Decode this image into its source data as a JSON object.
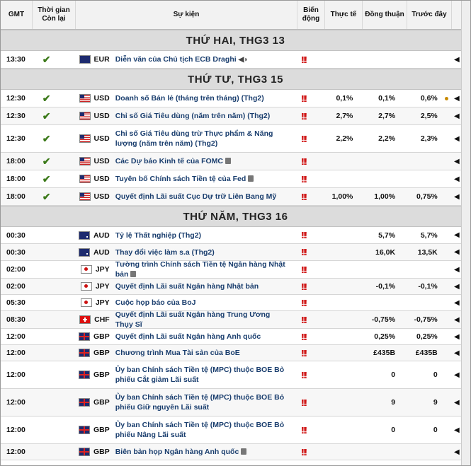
{
  "headers": {
    "gmt": "GMT",
    "remaining": "Thời gian Còn lại",
    "event": "Sự kiện",
    "impact": "Biến động",
    "actual": "Thực tế",
    "consensus": "Đồng thuận",
    "previous": "Trước đây"
  },
  "days": [
    {
      "title": "THỨ HAI, THG3 13",
      "rows": [
        {
          "time": "13:30",
          "done": true,
          "flag": "eur",
          "currency": "EUR",
          "event": "Diễn văn của Chủ tịch ECB Draghi",
          "icon": "speaker-icon",
          "impact": "!!!",
          "actual": "",
          "consensus": "",
          "previous": "",
          "dot": false
        }
      ]
    },
    {
      "title": "THỨ TƯ, THG3 15",
      "rows": [
        {
          "time": "12:30",
          "done": true,
          "flag": "usd",
          "currency": "USD",
          "event": "Doanh số Bán lẻ (tháng trên tháng) (Thg2)",
          "icon": "",
          "impact": "!!!",
          "actual": "0,1%",
          "consensus": "0,1%",
          "previous": "0,6%",
          "dot": true
        },
        {
          "time": "12:30",
          "done": true,
          "flag": "usd",
          "currency": "USD",
          "event": "Chỉ số Giá Tiêu dùng (năm trên năm) (Thg2)",
          "icon": "",
          "impact": "!!!",
          "actual": "2,7%",
          "consensus": "2,7%",
          "previous": "2,5%",
          "dot": false
        },
        {
          "time": "12:30",
          "done": true,
          "flag": "usd",
          "currency": "USD",
          "event": "Chỉ số Giá Tiêu dùng trừ Thực phẩm & Năng lượng (năm trên năm) (Thg2)",
          "icon": "",
          "impact": "!!!",
          "actual": "2,2%",
          "consensus": "2,2%",
          "previous": "2,3%",
          "dot": false
        },
        {
          "time": "18:00",
          "done": true,
          "flag": "usd",
          "currency": "USD",
          "event": "Các Dự báo Kinh tế của FOMC",
          "icon": "document-icon",
          "impact": "!!!",
          "actual": "",
          "consensus": "",
          "previous": "",
          "dot": false
        },
        {
          "time": "18:00",
          "done": true,
          "flag": "usd",
          "currency": "USD",
          "event": "Tuyên bố Chính sách Tiền tệ của Fed",
          "icon": "document-icon",
          "impact": "!!!",
          "actual": "",
          "consensus": "",
          "previous": "",
          "dot": false
        },
        {
          "time": "18:00",
          "done": true,
          "flag": "usd",
          "currency": "USD",
          "event": "Quyết định Lãi suất Cục Dự trữ Liên Bang Mỹ",
          "icon": "",
          "impact": "!!!",
          "actual": "1,00%",
          "consensus": "1,00%",
          "previous": "0,75%",
          "dot": false
        }
      ]
    },
    {
      "title": "THỨ NĂM, THG3 16",
      "rows": [
        {
          "time": "00:30",
          "done": false,
          "flag": "aud",
          "currency": "AUD",
          "event": "Tỷ lệ Thất nghiệp (Thg2)",
          "icon": "",
          "impact": "!!!",
          "actual": "",
          "consensus": "5,7%",
          "previous": "5,7%",
          "dot": false
        },
        {
          "time": "00:30",
          "done": false,
          "flag": "aud",
          "currency": "AUD",
          "event": "Thay đổi việc làm s.a (Thg2)",
          "icon": "",
          "impact": "!!!",
          "actual": "",
          "consensus": "16,0K",
          "previous": "13,5K",
          "dot": false
        },
        {
          "time": "02:00",
          "done": false,
          "flag": "jpy",
          "currency": "JPY",
          "event": "Tường trình Chính sách Tiền tệ Ngân hàng Nhật bản",
          "icon": "document-icon",
          "impact": "!!!",
          "actual": "",
          "consensus": "",
          "previous": "",
          "dot": false
        },
        {
          "time": "02:00",
          "done": false,
          "flag": "jpy",
          "currency": "JPY",
          "event": "Quyết định Lãi suất Ngân hàng Nhật bản",
          "icon": "",
          "impact": "!!!",
          "actual": "",
          "consensus": "-0,1%",
          "previous": "-0,1%",
          "dot": false
        },
        {
          "time": "05:30",
          "done": false,
          "flag": "jpy",
          "currency": "JPY",
          "event": "Cuộc họp báo của BoJ",
          "icon": "",
          "impact": "!!!",
          "actual": "",
          "consensus": "",
          "previous": "",
          "dot": false
        },
        {
          "time": "08:30",
          "done": false,
          "flag": "chf",
          "currency": "CHF",
          "event": "Quyết định Lãi suất Ngân hàng Trung Ương Thụy Sĩ",
          "icon": "",
          "impact": "!!!",
          "actual": "",
          "consensus": "-0,75%",
          "previous": "-0,75%",
          "dot": false
        },
        {
          "time": "12:00",
          "done": false,
          "flag": "gbp",
          "currency": "GBP",
          "event": "Quyết định Lãi suất Ngân hàng Anh quốc",
          "icon": "",
          "impact": "!!!",
          "actual": "",
          "consensus": "0,25%",
          "previous": "0,25%",
          "dot": false
        },
        {
          "time": "12:00",
          "done": false,
          "flag": "gbp",
          "currency": "GBP",
          "event": "Chương trình Mua Tài sản của BoE",
          "icon": "",
          "impact": "!!!",
          "actual": "",
          "consensus": "£435B",
          "previous": "£435B",
          "dot": false
        },
        {
          "time": "12:00",
          "done": false,
          "flag": "gbp",
          "currency": "GBP",
          "event": "Ủy ban Chính sách Tiền tệ (MPC) thuộc BOE Bỏ phiếu Cắt giảm Lãi suất",
          "icon": "",
          "impact": "!!!",
          "actual": "",
          "consensus": "0",
          "previous": "0",
          "dot": false
        },
        {
          "time": "12:00",
          "done": false,
          "flag": "gbp",
          "currency": "GBP",
          "event": "Ủy ban Chính sách Tiền tệ (MPC) thuộc BOE Bỏ phiếu Giữ nguyên Lãi suất",
          "icon": "",
          "impact": "!!!",
          "actual": "",
          "consensus": "9",
          "previous": "9",
          "dot": false
        },
        {
          "time": "12:00",
          "done": false,
          "flag": "gbp",
          "currency": "GBP",
          "event": "Ủy ban Chính sách Tiền tệ (MPC) thuộc BOE Bỏ phiếu Nâng Lãi suất",
          "icon": "",
          "impact": "!!!",
          "actual": "",
          "consensus": "0",
          "previous": "0",
          "dot": false
        },
        {
          "time": "12:00",
          "done": false,
          "flag": "gbp",
          "currency": "GBP",
          "event": "Biên bản họp Ngân hàng Anh quốc",
          "icon": "document-icon",
          "impact": "!!!",
          "actual": "",
          "consensus": "",
          "previous": "",
          "dot": false
        }
      ]
    }
  ],
  "glyphs": {
    "tick": "✔",
    "arrow": "◀",
    "speaker": "◀◗"
  }
}
